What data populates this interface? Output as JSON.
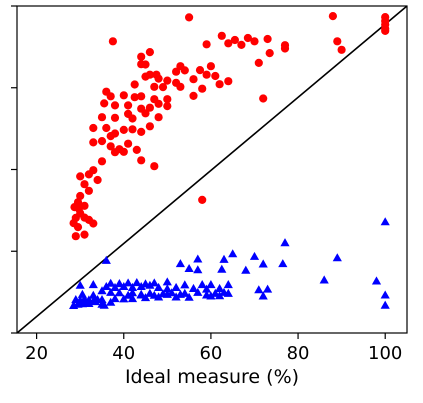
{
  "chart_data": {
    "type": "scatter",
    "title": "",
    "xlabel": "Ideal measure (%)",
    "ylabel": "",
    "xlim": [
      15.5,
      105
    ],
    "ylim": [
      0,
      100
    ],
    "x_ticks": [
      20,
      40,
      60,
      80,
      100
    ],
    "x_tick_labels": [
      "20",
      "40",
      "60",
      "80",
      "100"
    ],
    "y_ticks": [
      0,
      25,
      50,
      75,
      100
    ],
    "y_tick_labels_visible": false,
    "grid": false,
    "legend": null,
    "diagonal_line": {
      "from": [
        15.5,
        0
      ],
      "to": [
        105,
        100
      ],
      "color": "#000000"
    },
    "series": [
      {
        "marker": "circle",
        "color": "#ff0000",
        "points": [
          [
            55,
            96.5
          ],
          [
            88,
            96.9
          ],
          [
            100,
            96.6
          ],
          [
            100,
            95.4
          ],
          [
            100,
            94.3
          ],
          [
            100,
            93.1
          ],
          [
            100,
            92.4
          ],
          [
            62.5,
            90.9
          ],
          [
            65.5,
            89.6
          ],
          [
            68.5,
            90.2
          ],
          [
            70,
            89.2
          ],
          [
            73,
            89.9
          ],
          [
            37.5,
            89.2
          ],
          [
            59,
            88.3
          ],
          [
            64,
            88.6
          ],
          [
            67,
            88.1
          ],
          [
            77,
            88.0
          ],
          [
            89,
            89.2
          ],
          [
            44,
            84.5
          ],
          [
            46,
            85.9
          ],
          [
            73.5,
            85.6
          ],
          [
            77,
            87.0
          ],
          [
            44,
            82.2
          ],
          [
            45,
            82.1
          ],
          [
            52,
            79.9
          ],
          [
            53,
            81.6
          ],
          [
            54,
            80.3
          ],
          [
            57.5,
            80.4
          ],
          [
            60,
            81.6
          ],
          [
            47.5,
            79.0
          ],
          [
            45,
            78.4
          ],
          [
            46,
            79.0
          ],
          [
            48,
            77.8
          ],
          [
            50,
            77.2
          ],
          [
            52,
            76.5
          ],
          [
            56,
            77.6
          ],
          [
            59,
            79.0
          ],
          [
            61,
            78.6
          ],
          [
            64,
            77.0
          ],
          [
            42.5,
            76.0
          ],
          [
            47,
            75.3
          ],
          [
            49,
            75.2
          ],
          [
            53,
            75.3
          ],
          [
            58,
            74.7
          ],
          [
            62,
            76.1
          ],
          [
            36,
            73.8
          ],
          [
            37,
            72.4
          ],
          [
            40,
            72.7
          ],
          [
            42.5,
            72.1
          ],
          [
            44,
            72.4
          ],
          [
            47,
            71.5
          ],
          [
            48,
            70.1
          ],
          [
            50,
            71.5
          ],
          [
            56,
            72.5
          ],
          [
            35.5,
            70.2
          ],
          [
            38,
            69.6
          ],
          [
            41,
            69.6
          ],
          [
            44,
            68.6
          ],
          [
            46,
            68.9
          ],
          [
            50,
            69.4
          ],
          [
            72,
            71.7
          ],
          [
            35,
            66.0
          ],
          [
            38,
            65.8
          ],
          [
            41,
            67.0
          ],
          [
            42,
            65.6
          ],
          [
            45,
            67.2
          ],
          [
            48,
            66.0
          ],
          [
            33,
            62.7
          ],
          [
            36,
            62.7
          ],
          [
            37,
            60.2
          ],
          [
            38,
            61.0
          ],
          [
            40,
            62.1
          ],
          [
            42,
            62.3
          ],
          [
            44,
            61.5
          ],
          [
            46,
            63.2
          ],
          [
            33,
            58.3
          ],
          [
            35,
            58.7
          ],
          [
            37,
            57.1
          ],
          [
            39,
            56.2
          ],
          [
            41,
            57.9
          ],
          [
            43,
            56.0
          ],
          [
            35,
            52.5
          ],
          [
            38,
            55.3
          ],
          [
            40,
            55.4
          ],
          [
            44,
            52.8
          ],
          [
            47,
            51.0
          ],
          [
            30,
            47.9
          ],
          [
            32,
            48.5
          ],
          [
            33,
            49.8
          ],
          [
            34,
            46.8
          ],
          [
            31,
            45.5
          ],
          [
            32,
            43.5
          ],
          [
            30,
            41.9
          ],
          [
            29.5,
            40.0
          ],
          [
            28.7,
            38.5
          ],
          [
            29.7,
            38.0
          ],
          [
            31,
            38.9
          ],
          [
            30,
            36.6
          ],
          [
            29,
            35.2
          ],
          [
            31,
            35.3
          ],
          [
            32,
            34.6
          ],
          [
            28.5,
            33.6
          ],
          [
            29.5,
            32.4
          ],
          [
            33,
            33.5
          ],
          [
            29,
            29.6
          ],
          [
            31,
            30.1
          ],
          [
            58,
            40.7
          ],
          [
            71,
            82.6
          ],
          [
            90,
            86.6
          ]
        ]
      },
      {
        "marker": "triangle",
        "color": "#0000ff",
        "points": [
          [
            100,
            34.0
          ],
          [
            77,
            27.6
          ],
          [
            65,
            24.2
          ],
          [
            70,
            23.4
          ],
          [
            89,
            23.0
          ],
          [
            57,
            22.6
          ],
          [
            63,
            22.5
          ],
          [
            36,
            22.2
          ],
          [
            53,
            21.2
          ],
          [
            72,
            21.1
          ],
          [
            55,
            19.7
          ],
          [
            57,
            19.3
          ],
          [
            68,
            19.2
          ],
          [
            76.5,
            21.2
          ],
          [
            62.5,
            19.5
          ],
          [
            86,
            16.2
          ],
          [
            98,
            15.9
          ],
          [
            37,
            15.2
          ],
          [
            39,
            15.1
          ],
          [
            41,
            15.3
          ],
          [
            43,
            15.4
          ],
          [
            45,
            15.0
          ],
          [
            47,
            15.3
          ],
          [
            50,
            15.6
          ],
          [
            54,
            14.7
          ],
          [
            58,
            14.8
          ],
          [
            60,
            14.8
          ],
          [
            64,
            14.8
          ],
          [
            30,
            14.6
          ],
          [
            33,
            14.8
          ],
          [
            36,
            14.2
          ],
          [
            38,
            13.9
          ],
          [
            40,
            14.2
          ],
          [
            42,
            13.9
          ],
          [
            44,
            14.2
          ],
          [
            46,
            14.6
          ],
          [
            48,
            13.9
          ],
          [
            50,
            13.5
          ],
          [
            52,
            13.9
          ],
          [
            56,
            13.6
          ],
          [
            59,
            13.4
          ],
          [
            62,
            13.6
          ],
          [
            71,
            13.2
          ],
          [
            73,
            13.4
          ],
          [
            35,
            12.9
          ],
          [
            37,
            12.4
          ],
          [
            39,
            12.3
          ],
          [
            42,
            12.3
          ],
          [
            44,
            11.8
          ],
          [
            46,
            12.1
          ],
          [
            49,
            12.0
          ],
          [
            51,
            12.3
          ],
          [
            54,
            12.1
          ],
          [
            57,
            12.4
          ],
          [
            61,
            12.1
          ],
          [
            63,
            12.4
          ],
          [
            64,
            12.1
          ],
          [
            30.5,
            11.8
          ],
          [
            33,
            11.5
          ],
          [
            41,
            11.5
          ],
          [
            44,
            11.6
          ],
          [
            47,
            11.5
          ],
          [
            50,
            11.8
          ],
          [
            53,
            11.8
          ],
          [
            59,
            11.6
          ],
          [
            62,
            11.4
          ],
          [
            72,
            11.3
          ],
          [
            100,
            11.6
          ],
          [
            29,
            10.2
          ],
          [
            30,
            10.0
          ],
          [
            31,
            10.4
          ],
          [
            32,
            10.1
          ],
          [
            33,
            9.7
          ],
          [
            34,
            10.2
          ],
          [
            35,
            10.2
          ],
          [
            38,
            10.5
          ],
          [
            40,
            10.4
          ],
          [
            42,
            10.5
          ],
          [
            45,
            10.8
          ],
          [
            48,
            11.0
          ],
          [
            52,
            11.0
          ],
          [
            55,
            10.9
          ],
          [
            60,
            11.3
          ],
          [
            28.5,
            8.4
          ],
          [
            29.5,
            8.8
          ],
          [
            30.5,
            8.9
          ],
          [
            31,
            9.3
          ],
          [
            32,
            9.0
          ],
          [
            33.5,
            9.6
          ],
          [
            35,
            8.8
          ],
          [
            37,
            9.4
          ],
          [
            100,
            8.5
          ],
          [
            35.5,
            8.5
          ]
        ]
      }
    ]
  }
}
